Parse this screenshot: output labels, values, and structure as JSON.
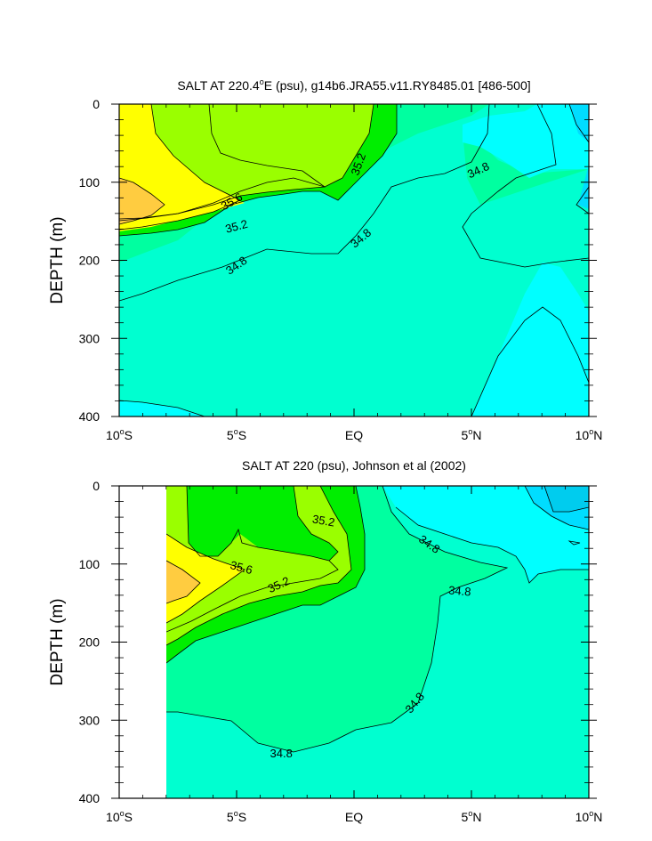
{
  "chart_data": [
    {
      "type": "heatmap",
      "title": "SALT AT 220.4°E (psu), g14b6.JRA55.v11.RY8485.01 [486-500]",
      "title_parts": {
        "main": "SALT AT 220.4",
        "degree": "o",
        "rest": "E (psu), g14b6.JRA55.v11.RY8485.01 [486-500]"
      },
      "xlabel": "",
      "ylabel": "DEPTH (m)",
      "xlim": [
        -10,
        10
      ],
      "ylim": [
        400,
        0
      ],
      "x_ticks": [
        {
          "value": -10,
          "num": "10",
          "deg": "o",
          "hemi": "S"
        },
        {
          "value": -5,
          "num": "5",
          "deg": "o",
          "hemi": "S"
        },
        {
          "value": 0,
          "num": "EQ",
          "deg": "",
          "hemi": ""
        },
        {
          "value": 5,
          "num": "5",
          "deg": "o",
          "hemi": "N"
        },
        {
          "value": 10,
          "num": "10",
          "deg": "o",
          "hemi": "N"
        }
      ],
      "y_ticks": [
        0,
        100,
        200,
        300,
        400
      ],
      "y_tick_labels": [
        "0",
        "100",
        "200",
        "300",
        "400"
      ],
      "contour_levels": [
        34.6,
        34.8,
        35.0,
        35.2,
        35.4,
        35.6,
        35.8
      ],
      "contour_labels": [
        {
          "text": "35.6",
          "lat": -5.2,
          "depth": 125,
          "angle": -30
        },
        {
          "text": "35.2",
          "lat": -5.0,
          "depth": 157,
          "angle": -15
        },
        {
          "text": "34.8",
          "lat": -5.0,
          "depth": 207,
          "angle": -35
        },
        {
          "text": "35.2",
          "lat": 0.2,
          "depth": 77,
          "angle": -70
        },
        {
          "text": "34.8",
          "lat": 0.3,
          "depth": 172,
          "angle": -40
        },
        {
          "text": "34.8",
          "lat": 5.3,
          "depth": 85,
          "angle": -25
        }
      ]
    },
    {
      "type": "heatmap",
      "title": "SALT AT 220 (psu), Johnson et al (2002)",
      "xlabel": "",
      "ylabel": "DEPTH (m)",
      "xlim": [
        -10,
        10
      ],
      "ylim": [
        400,
        0
      ],
      "data_lat_range": [
        -8,
        10
      ],
      "x_ticks": [
        {
          "value": -10,
          "num": "10",
          "deg": "o",
          "hemi": "S"
        },
        {
          "value": -5,
          "num": "5",
          "deg": "o",
          "hemi": "S"
        },
        {
          "value": 0,
          "num": "EQ",
          "deg": "",
          "hemi": ""
        },
        {
          "value": 5,
          "num": "5",
          "deg": "o",
          "hemi": "N"
        },
        {
          "value": 10,
          "num": "10",
          "deg": "o",
          "hemi": "N"
        }
      ],
      "y_ticks": [
        0,
        100,
        200,
        300,
        400
      ],
      "y_tick_labels": [
        "0",
        "100",
        "200",
        "300",
        "400"
      ],
      "contour_levels": [
        34.6,
        34.8,
        35.0,
        35.2,
        35.4,
        35.6,
        35.8
      ],
      "contour_labels": [
        {
          "text": "35.2",
          "lat": -1.3,
          "depth": 45,
          "angle": 10
        },
        {
          "text": "35.6",
          "lat": -4.8,
          "depth": 105,
          "angle": 15
        },
        {
          "text": "35.2",
          "lat": -3.2,
          "depth": 127,
          "angle": -25
        },
        {
          "text": "34.8",
          "lat": 3.2,
          "depth": 75,
          "angle": 35
        },
        {
          "text": "34.8",
          "lat": 4.5,
          "depth": 135,
          "angle": 5
        },
        {
          "text": "34.8",
          "lat": 2.6,
          "depth": 278,
          "angle": -50
        },
        {
          "text": "34.8",
          "lat": -3.1,
          "depth": 343,
          "angle": 0
        }
      ]
    }
  ],
  "colors": {
    "below_34.6": "#00ffff",
    "34.6_34.8": "#00ffd0",
    "34.8_35.0": "#00ffa0",
    "35.0_35.2": "#00ee00",
    "35.2_35.4": "#9aff00",
    "35.4_35.6": "#ffff00",
    "above_35.6": "#ffcc40",
    "top_right_fresh": "#00ddff"
  }
}
